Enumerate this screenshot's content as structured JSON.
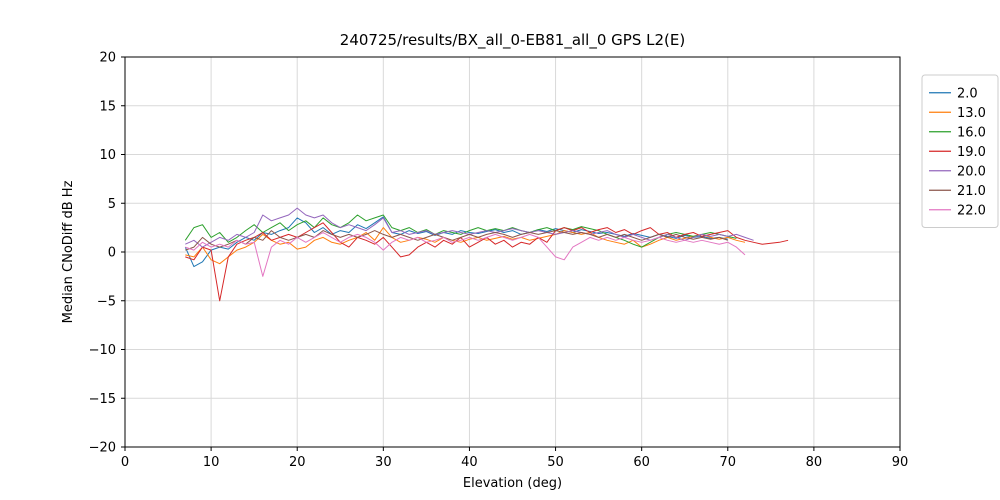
{
  "figure": {
    "title": "240725/results/BX_all_0-EB81_all_0 GPS L2(E)",
    "xlabel": "Elevation (deg)",
    "ylabel": "Median CNoDiff dB Hz"
  },
  "chart_data": {
    "type": "line",
    "title": "240725/results/BX_all_0-EB81_all_0 GPS L2(E)",
    "xlabel": "Elevation (deg)",
    "ylabel": "Median CNoDiff dB Hz",
    "xlim": [
      0,
      90
    ],
    "ylim": [
      -20,
      20
    ],
    "xticks": [
      0,
      10,
      20,
      30,
      40,
      50,
      60,
      70,
      80,
      90
    ],
    "yticks": [
      -20,
      -15,
      -10,
      -5,
      0,
      5,
      10,
      15,
      20
    ],
    "grid": true,
    "grid_color": "#d9d9d9",
    "axis_color": "#000000",
    "legend_position": "outside-right",
    "series": [
      {
        "name": "2.0",
        "color": "#1f77b4",
        "x_start": 7,
        "x_step": 1,
        "values": [
          0.5,
          -1.5,
          -1.0,
          0.2,
          0.5,
          0.3,
          1.0,
          1.5,
          1.2,
          2.0,
          1.8,
          2.2,
          2.5,
          3.5,
          3.0,
          2.0,
          2.5,
          1.8,
          2.2,
          2.0,
          2.8,
          2.4,
          3.0,
          3.6,
          2.0,
          1.8,
          2.2,
          1.9,
          2.1,
          1.7,
          2.0,
          1.8,
          2.2,
          2.0,
          1.9,
          2.1,
          2.3,
          2.0,
          2.2,
          1.8,
          2.0,
          2.3,
          2.1,
          2.4,
          2.2,
          2.0,
          2.3,
          2.1,
          1.9,
          2.0,
          1.8,
          1.6,
          1.9,
          1.7,
          1.5,
          1.8,
          1.6,
          1.4,
          1.7,
          1.5,
          1.6,
          1.4,
          1.5,
          1.3
        ]
      },
      {
        "name": "13.0",
        "color": "#ff7f0e",
        "x_start": 7,
        "x_step": 1,
        "values": [
          -0.3,
          -0.5,
          0.5,
          -0.8,
          -1.2,
          -0.5,
          0.2,
          0.5,
          1.0,
          1.8,
          1.2,
          0.8,
          1.0,
          0.3,
          0.5,
          1.2,
          1.5,
          1.0,
          0.8,
          1.2,
          1.5,
          2.0,
          1.2,
          2.5,
          1.5,
          1.0,
          1.2,
          1.5,
          1.3,
          1.0,
          1.5,
          1.2,
          1.0,
          1.3,
          1.5,
          1.2,
          1.4,
          1.6,
          1.3,
          1.5,
          1.2,
          1.4,
          1.6,
          1.8,
          2.2,
          2.0,
          1.8,
          2.0,
          1.5,
          1.2,
          1.0,
          0.8,
          1.2,
          0.5,
          0.8,
          1.2,
          1.5,
          1.2,
          1.4,
          1.6,
          1.8,
          1.5,
          1.3,
          1.5,
          1.2,
          1.0
        ]
      },
      {
        "name": "16.0",
        "color": "#2ca02c",
        "x_start": 7,
        "x_step": 1,
        "values": [
          1.2,
          2.5,
          2.8,
          1.5,
          2.0,
          1.0,
          1.5,
          2.2,
          2.8,
          2.0,
          2.5,
          3.0,
          2.2,
          2.8,
          3.2,
          2.5,
          3.5,
          2.8,
          2.5,
          3.0,
          3.8,
          3.2,
          3.5,
          3.8,
          2.5,
          2.2,
          2.5,
          2.0,
          2.3,
          1.8,
          2.2,
          2.0,
          1.8,
          2.2,
          2.5,
          2.2,
          2.4,
          2.2,
          2.5,
          2.2,
          2.0,
          2.3,
          2.5,
          2.2,
          2.5,
          2.3,
          2.6,
          2.4,
          2.2,
          1.8,
          1.5,
          1.2,
          0.8,
          0.5,
          1.0,
          1.5,
          1.8,
          2.0,
          1.8,
          1.6,
          1.8,
          2.0,
          1.8,
          1.6,
          1.4
        ]
      },
      {
        "name": "19.0",
        "color": "#d62728",
        "x_start": 7,
        "x_step": 1,
        "values": [
          -0.5,
          -0.8,
          0.5,
          0.2,
          -5.0,
          -0.5,
          0.8,
          1.2,
          1.5,
          2.0,
          1.2,
          1.5,
          1.8,
          1.5,
          2.0,
          2.5,
          3.0,
          2.0,
          1.0,
          0.5,
          1.5,
          1.2,
          0.8,
          1.5,
          0.5,
          -0.5,
          -0.3,
          0.5,
          1.0,
          0.5,
          1.2,
          0.8,
          1.5,
          0.5,
          1.0,
          1.5,
          0.8,
          1.2,
          0.5,
          1.0,
          0.8,
          1.5,
          1.0,
          2.2,
          2.5,
          2.2,
          2.5,
          2.0,
          2.3,
          2.5,
          2.0,
          2.3,
          1.8,
          2.2,
          2.5,
          1.8,
          2.0,
          1.5,
          1.8,
          2.0,
          1.6,
          1.8,
          2.0,
          2.2,
          1.5,
          1.2,
          1.0,
          0.8,
          0.9,
          1.0,
          1.2
        ]
      },
      {
        "name": "20.0",
        "color": "#9467bd",
        "x_start": 7,
        "x_step": 1,
        "values": [
          0.8,
          1.2,
          0.5,
          1.0,
          1.5,
          1.2,
          1.8,
          1.5,
          2.0,
          3.8,
          3.2,
          3.5,
          3.8,
          4.5,
          3.8,
          3.5,
          3.8,
          3.0,
          2.5,
          2.8,
          2.5,
          2.2,
          2.8,
          3.5,
          2.0,
          2.2,
          1.8,
          2.0,
          2.2,
          1.8,
          2.0,
          2.2,
          2.0,
          1.8,
          2.0,
          2.2,
          2.0,
          2.2,
          2.4,
          2.2,
          2.0,
          2.2,
          2.0,
          1.8,
          2.0,
          2.2,
          2.0,
          1.8,
          2.0,
          2.2,
          1.8,
          1.5,
          1.8,
          1.5,
          1.2,
          1.5,
          1.8,
          1.5,
          1.2,
          1.5,
          1.8,
          1.6,
          1.8,
          1.6,
          1.8,
          1.5,
          1.2
        ]
      },
      {
        "name": "21.0",
        "color": "#8c564b",
        "x_start": 7,
        "x_step": 1,
        "values": [
          0.2,
          0.5,
          1.5,
          0.8,
          0.5,
          0.8,
          1.2,
          0.8,
          1.5,
          1.2,
          2.2,
          1.5,
          1.2,
          1.5,
          1.8,
          1.5,
          2.2,
          1.8,
          1.5,
          1.8,
          1.5,
          1.8,
          2.2,
          1.8,
          1.5,
          1.8,
          1.5,
          1.2,
          1.5,
          1.8,
          1.5,
          1.2,
          1.5,
          1.8,
          1.5,
          1.8,
          2.0,
          1.8,
          1.5,
          1.8,
          2.0,
          1.8,
          2.0,
          2.2,
          2.0,
          1.8,
          2.0,
          1.8,
          1.5,
          1.8,
          1.5,
          1.8,
          1.5,
          1.2,
          1.5,
          1.8,
          1.5,
          1.8,
          1.5,
          1.3,
          1.5,
          1.3,
          1.5,
          1.2
        ]
      },
      {
        "name": "22.0",
        "color": "#e377c2",
        "x_start": 7,
        "x_step": 1,
        "values": [
          0.5,
          0.2,
          1.0,
          0.5,
          0.8,
          0.5,
          1.2,
          0.8,
          1.0,
          -2.5,
          0.5,
          1.2,
          0.8,
          1.5,
          1.0,
          1.5,
          2.0,
          1.5,
          1.0,
          1.5,
          1.8,
          1.5,
          1.0,
          0.2,
          1.0,
          1.5,
          1.2,
          1.5,
          1.0,
          1.2,
          1.5,
          1.0,
          1.2,
          1.5,
          1.2,
          1.5,
          1.8,
          1.5,
          1.2,
          1.5,
          1.8,
          1.5,
          0.5,
          -0.5,
          -0.8,
          0.5,
          1.0,
          1.5,
          1.2,
          1.5,
          1.2,
          1.5,
          1.2,
          1.0,
          1.2,
          1.5,
          1.2,
          1.0,
          1.2,
          1.0,
          1.2,
          1.0,
          0.8,
          1.0,
          0.5,
          -0.3
        ]
      }
    ]
  }
}
